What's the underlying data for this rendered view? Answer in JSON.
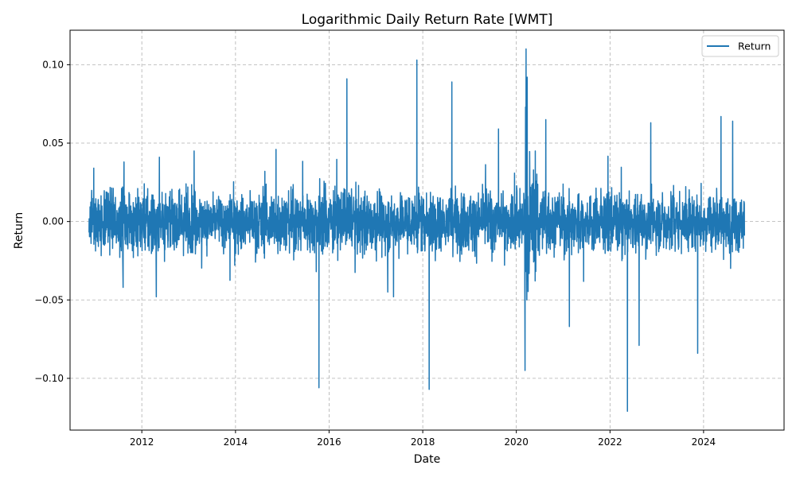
{
  "chart_data": {
    "type": "line",
    "title": "Logarithmic Daily Return Rate [WMT]",
    "xlabel": "Date",
    "ylabel": "Return",
    "xlim": [
      "2010-06-20",
      "2025-09-20"
    ],
    "ylim": [
      -0.133,
      0.122
    ],
    "x_ticks": [
      "2012",
      "2014",
      "2016",
      "2018",
      "2020",
      "2022",
      "2024"
    ],
    "y_ticks": [
      "0.10",
      "0.05",
      "0.00",
      "−0.05",
      "−0.10"
    ],
    "y_tick_values": [
      0.1,
      0.05,
      0.0,
      -0.05,
      -0.1
    ],
    "grid": true,
    "legend_position": "top-right",
    "series": [
      {
        "name": "Return",
        "color": "#1f77b4",
        "date_range": [
          "2010-11-15",
          "2024-11-15"
        ],
        "typical_abs_return": 0.012,
        "notable_points": [
          {
            "x": "2011-08-08",
            "y": -0.042
          },
          {
            "x": "2011-08-15",
            "y": 0.038
          },
          {
            "x": "2012-05-17",
            "y": 0.041
          },
          {
            "x": "2012-04-23",
            "y": -0.048
          },
          {
            "x": "2014-11-13",
            "y": 0.046
          },
          {
            "x": "2015-10-14",
            "y": -0.106
          },
          {
            "x": "2016-05-19",
            "y": 0.091
          },
          {
            "x": "2017-05-18",
            "y": -0.048
          },
          {
            "x": "2017-11-16",
            "y": 0.103
          },
          {
            "x": "2018-02-20",
            "y": -0.107
          },
          {
            "x": "2018-08-16",
            "y": 0.089
          },
          {
            "x": "2019-08-15",
            "y": 0.059
          },
          {
            "x": "2020-03-09",
            "y": -0.095
          },
          {
            "x": "2020-03-13",
            "y": 0.073
          },
          {
            "x": "2020-03-17",
            "y": 0.11
          },
          {
            "x": "2020-03-23",
            "y": -0.05
          },
          {
            "x": "2020-03-26",
            "y": 0.092
          },
          {
            "x": "2020-08-18",
            "y": 0.065
          },
          {
            "x": "2021-02-18",
            "y": -0.067
          },
          {
            "x": "2022-05-17",
            "y": -0.121
          },
          {
            "x": "2022-08-16",
            "y": -0.079
          },
          {
            "x": "2022-11-15",
            "y": 0.063
          },
          {
            "x": "2023-11-16",
            "y": -0.084
          },
          {
            "x": "2024-05-16",
            "y": 0.067
          },
          {
            "x": "2024-08-15",
            "y": 0.064
          }
        ]
      }
    ]
  }
}
